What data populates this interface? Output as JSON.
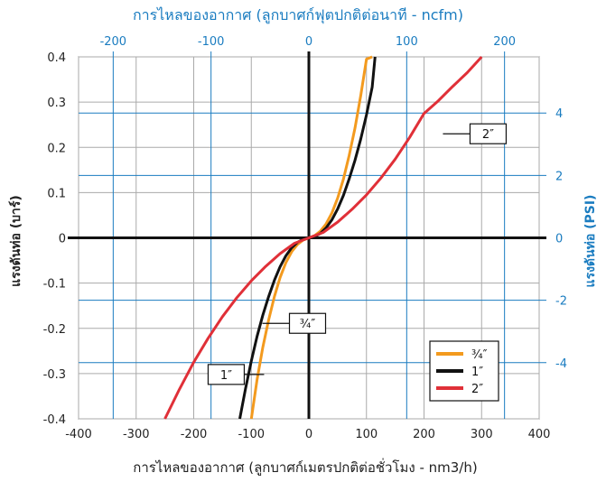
{
  "chart_data": {
    "type": "line",
    "title": "การไหลของอากาศ (ลูกบาศก์ฟุตปกติต่อนาที - ncfm)",
    "xlabel": "การไหลของอากาศ (ลูกบาศก์เมตรปกติต่อชั่วโมง - nm3/h)",
    "ylabel": "แรงดันท่อ (บาร์)",
    "y2label": "แรงดันท่อ (PSI)",
    "xlim": [
      -400,
      400
    ],
    "ylim": [
      -0.4,
      0.4
    ],
    "x2lim": [
      -235.4,
      235.4
    ],
    "y2lim": [
      -5.8,
      5.8
    ],
    "x_ticks": [
      "-400",
      "-300",
      "-200",
      "-100",
      "0",
      "100",
      "200",
      "300",
      "400"
    ],
    "y_ticks": [
      "-0.4",
      "-0.3",
      "-0.2",
      "-0.1",
      "0",
      "0.1",
      "0.2",
      "0.3",
      "0.4"
    ],
    "x2_ticks": [
      "-200",
      "-100",
      "0",
      "100",
      "200"
    ],
    "y2_ticks": [
      "-4",
      "-2",
      "0",
      "2",
      "4"
    ],
    "grid": true,
    "legend_position": "bottom-right",
    "series": [
      {
        "name": "¾″",
        "color": "#f39a1e",
        "x": [
          -100,
          -90,
          -80,
          -70,
          -60,
          -50,
          -40,
          -30,
          -20,
          -10,
          0,
          10,
          20,
          30,
          40,
          50,
          60,
          70,
          80,
          90,
          100,
          110
        ],
        "y": [
          -0.4,
          -0.314,
          -0.242,
          -0.182,
          -0.13,
          -0.088,
          -0.055,
          -0.031,
          -0.015,
          -0.005,
          0,
          0.005,
          0.015,
          0.031,
          0.055,
          0.088,
          0.13,
          0.182,
          0.242,
          0.314,
          0.395,
          0.4
        ]
      },
      {
        "name": "1″",
        "color": "#111111",
        "x": [
          -120,
          -110,
          -100,
          -90,
          -80,
          -70,
          -60,
          -50,
          -40,
          -30,
          -20,
          -10,
          0,
          10,
          20,
          30,
          40,
          50,
          60,
          70,
          80,
          90,
          100,
          110,
          115
        ],
        "y": [
          -0.4,
          -0.333,
          -0.272,
          -0.218,
          -0.171,
          -0.13,
          -0.094,
          -0.064,
          -0.04,
          -0.022,
          -0.01,
          -0.003,
          0,
          0.003,
          0.01,
          0.022,
          0.04,
          0.064,
          0.094,
          0.13,
          0.171,
          0.218,
          0.272,
          0.333,
          0.4
        ]
      },
      {
        "name": "2″",
        "color": "#e03038",
        "x": [
          -250,
          -225,
          -200,
          -175,
          -150,
          -125,
          -100,
          -75,
          -50,
          -25,
          0,
          25,
          50,
          75,
          100,
          125,
          150,
          175,
          200,
          225,
          250,
          275,
          300
        ],
        "y": [
          -0.4,
          -0.335,
          -0.275,
          -0.222,
          -0.174,
          -0.132,
          -0.095,
          -0.063,
          -0.035,
          -0.012,
          0,
          0.012,
          0.035,
          0.063,
          0.095,
          0.132,
          0.174,
          0.222,
          0.275,
          0.303,
          0.335,
          0.365,
          0.4
        ]
      }
    ],
    "annotations": [
      {
        "text": "2″",
        "x": 225,
        "y": 0.23
      },
      {
        "text": "¾″",
        "x": -40,
        "y": -0.187
      },
      {
        "text": "1″",
        "x": -175,
        "y": -0.302
      }
    ],
    "legend": [
      "¾″",
      "1″",
      "2″"
    ]
  }
}
